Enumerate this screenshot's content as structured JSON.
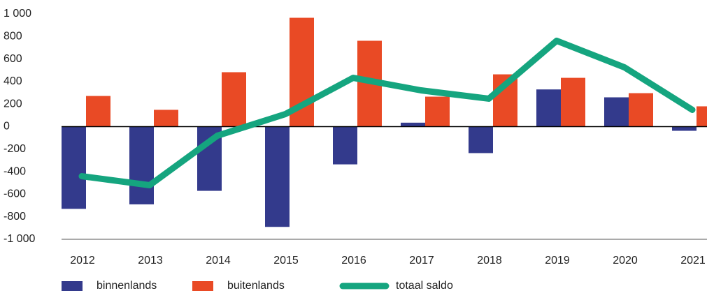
{
  "chart_data": {
    "type": "bar-line",
    "categories": [
      "2012",
      "2013",
      "2014",
      "2015",
      "2016",
      "2017",
      "2018",
      "2019",
      "2020",
      "2021"
    ],
    "series": [
      {
        "name": "binnenlands",
        "type": "bar",
        "color": "#333a8c",
        "values": [
          -730,
          -690,
          -570,
          -890,
          -335,
          35,
          -235,
          330,
          260,
          -37
        ]
      },
      {
        "name": "buitenlands",
        "type": "bar",
        "color": "#e94a25",
        "values": [
          272,
          149,
          483,
          966,
          762,
          266,
          464,
          433,
          297,
          180
        ]
      },
      {
        "name": "totaal saldo",
        "type": "line",
        "color": "#15a57f",
        "values": [
          -440,
          -520,
          -80,
          111,
          433,
          322,
          248,
          762,
          526,
          149
        ]
      }
    ],
    "ylim": [
      -1000,
      1000
    ],
    "yticks": [
      {
        "value": -1000,
        "label": "-1 000"
      },
      -800,
      -600,
      -400,
      -200,
      0,
      200,
      400,
      600,
      800,
      {
        "value": 1000,
        "label": "1 000"
      }
    ]
  }
}
